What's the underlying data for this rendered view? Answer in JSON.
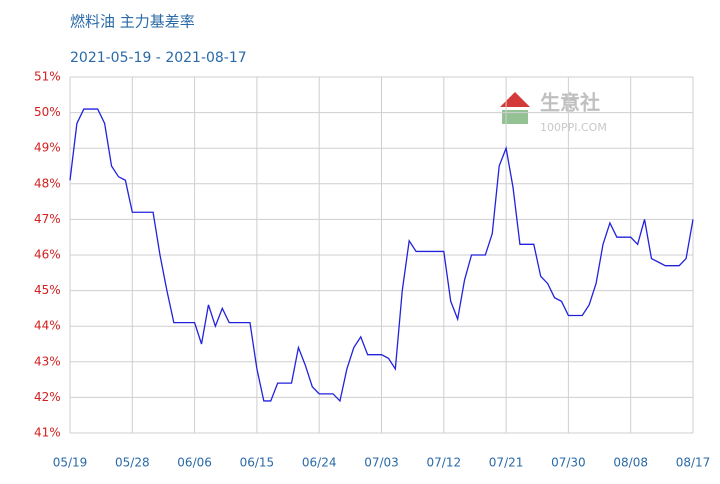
{
  "chart_data": {
    "type": "line",
    "title": "燃料油 主力基差率",
    "subtitle": "2021-05-19 - 2021-08-17",
    "watermark": [
      "生意社",
      "100PPI.COM"
    ],
    "x": [
      "05/19",
      "05/20",
      "05/21",
      "05/22",
      "05/23",
      "05/24",
      "05/25",
      "05/26",
      "05/27",
      "05/28",
      "05/29",
      "05/30",
      "05/31",
      "06/01",
      "06/02",
      "06/03",
      "06/04",
      "06/05",
      "06/06",
      "06/07",
      "06/08",
      "06/09",
      "06/10",
      "06/11",
      "06/12",
      "06/13",
      "06/14",
      "06/15",
      "06/16",
      "06/17",
      "06/18",
      "06/19",
      "06/20",
      "06/21",
      "06/22",
      "06/23",
      "06/24",
      "06/25",
      "06/26",
      "06/27",
      "06/28",
      "06/29",
      "06/30",
      "07/01",
      "07/02",
      "07/03",
      "07/04",
      "07/05",
      "07/06",
      "07/07",
      "07/08",
      "07/09",
      "07/10",
      "07/11",
      "07/12",
      "07/13",
      "07/14",
      "07/15",
      "07/16",
      "07/17",
      "07/18",
      "07/19",
      "07/20",
      "07/21",
      "07/22",
      "07/23",
      "07/24",
      "07/25",
      "07/26",
      "07/27",
      "07/28",
      "07/29",
      "07/30",
      "07/31",
      "08/01",
      "08/02",
      "08/03",
      "08/04",
      "08/05",
      "08/06",
      "08/07",
      "08/08",
      "08/09",
      "08/10",
      "08/11",
      "08/12",
      "08/13",
      "08/14",
      "08/15",
      "08/16",
      "08/17"
    ],
    "series": [
      {
        "name": "基差率",
        "color": "#2222dd",
        "values": [
          48.1,
          49.7,
          50.1,
          50.1,
          50.1,
          49.7,
          48.5,
          48.2,
          48.1,
          47.2,
          47.2,
          47.2,
          47.2,
          46.0,
          45.0,
          44.1,
          44.1,
          44.1,
          44.1,
          43.5,
          44.6,
          44.0,
          44.5,
          44.1,
          44.1,
          44.1,
          44.1,
          42.8,
          41.9,
          41.9,
          42.4,
          42.4,
          42.4,
          43.4,
          42.9,
          42.3,
          42.1,
          42.1,
          42.1,
          41.9,
          42.8,
          43.4,
          43.7,
          43.2,
          43.2,
          43.2,
          43.1,
          42.8,
          45.0,
          46.4,
          46.1,
          46.1,
          46.1,
          46.1,
          46.1,
          44.7,
          44.2,
          45.3,
          46.0,
          46.0,
          46.0,
          46.6,
          48.5,
          49.0,
          47.9,
          46.3,
          46.3,
          46.3,
          45.4,
          45.2,
          44.8,
          44.7,
          44.3,
          44.3,
          44.3,
          44.6,
          45.2,
          46.3,
          46.9,
          46.5,
          46.5,
          46.5,
          46.3,
          47.0,
          45.9,
          45.8,
          45.7,
          45.7,
          45.7,
          45.9,
          47.0
        ]
      }
    ],
    "xticks": [
      "05/19",
      "05/28",
      "06/06",
      "06/15",
      "06/24",
      "07/03",
      "07/12",
      "07/21",
      "07/30",
      "08/08",
      "08/17"
    ],
    "ylim": [
      41,
      51
    ],
    "yticks": [
      {
        "value": 41,
        "label": "41%"
      },
      {
        "value": 42,
        "label": "42%"
      },
      {
        "value": 43,
        "label": "43%"
      },
      {
        "value": 44,
        "label": "44%"
      },
      {
        "value": 45,
        "label": "45%"
      },
      {
        "value": 46,
        "label": "46%"
      },
      {
        "value": 47,
        "label": "47%"
      },
      {
        "value": 48,
        "label": "48%"
      },
      {
        "value": 49,
        "label": "49%"
      },
      {
        "value": 50,
        "label": "50%"
      },
      {
        "value": 51,
        "label": "51%"
      }
    ],
    "grid": true
  }
}
